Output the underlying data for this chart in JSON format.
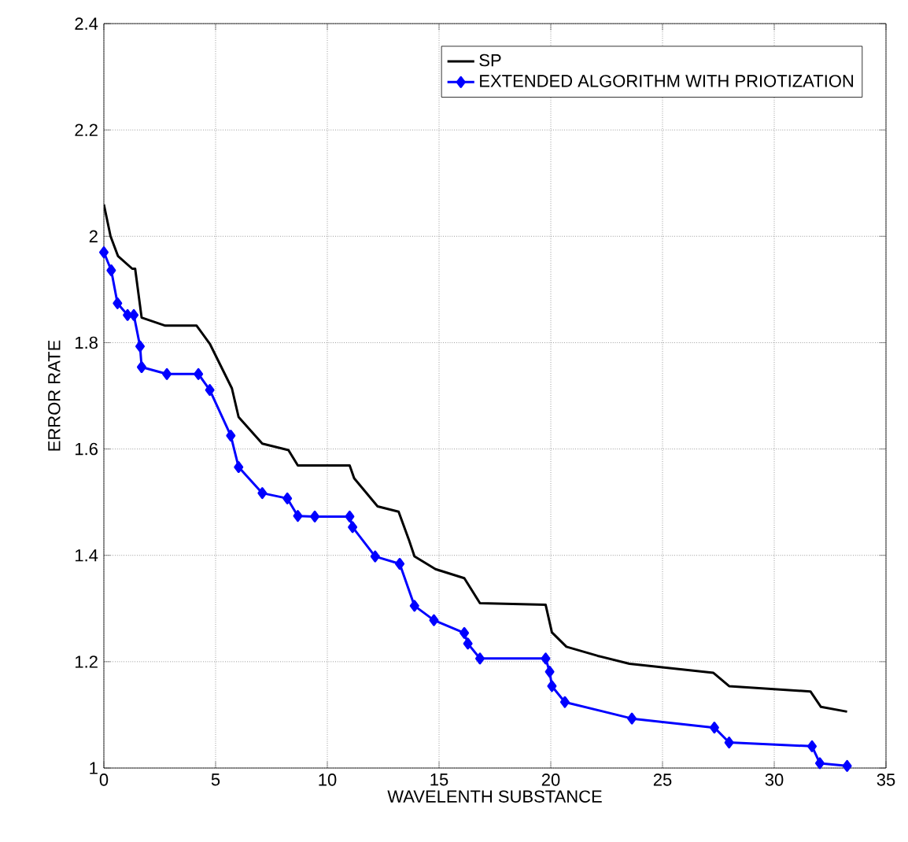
{
  "chart_data": {
    "type": "line",
    "xlabel": "WAVELENTH SUBSTANCE",
    "ylabel": "ERROR RATE",
    "xlim": [
      0,
      35
    ],
    "ylim": [
      1,
      2.4
    ],
    "xticks": [
      0,
      5,
      10,
      15,
      20,
      25,
      30,
      35
    ],
    "yticks": [
      1,
      1.2,
      1.4,
      1.6,
      1.8,
      2,
      2.2,
      2.4
    ],
    "grid": true,
    "legend": "top right",
    "marker": "diamond",
    "series": [
      {
        "name": "SP",
        "color": "#000000",
        "marker": "none",
        "x": [
          0,
          0.3,
          0.63,
          1.27,
          1.4,
          1.69,
          2.75,
          4.15,
          4.74,
          5.73,
          6.03,
          7.09,
          8.26,
          8.68,
          11.0,
          11.2,
          12.25,
          13.19,
          13.66,
          13.9,
          14.84,
          16.13,
          16.83,
          19.77,
          20.05,
          20.7,
          22.1,
          23.52,
          27.28,
          27.98,
          31.62,
          32.09,
          33.26
        ],
        "values": [
          2.06,
          2.0,
          1.963,
          1.939,
          1.939,
          1.847,
          1.832,
          1.832,
          1.798,
          1.714,
          1.66,
          1.61,
          1.598,
          1.569,
          1.569,
          1.545,
          1.492,
          1.482,
          1.428,
          1.398,
          1.374,
          1.357,
          1.31,
          1.307,
          1.255,
          1.228,
          1.211,
          1.196,
          1.179,
          1.154,
          1.144,
          1.115,
          1.106
        ]
      },
      {
        "name": "EXTENDED ALGORITHM WITH PRIOTIZATION",
        "color": "#0000ff",
        "x": [
          0,
          0.33,
          0.61,
          1.06,
          1.34,
          1.62,
          1.69,
          2.82,
          4.23,
          4.74,
          5.68,
          6.03,
          7.09,
          8.21,
          8.68,
          9.44,
          11.0,
          11.13,
          12.14,
          13.24,
          13.9,
          14.77,
          16.13,
          16.29,
          16.83,
          19.77,
          19.95,
          20.05,
          20.63,
          23.63,
          27.32,
          27.98,
          31.69,
          32.04,
          33.26
        ],
        "values": [
          1.97,
          1.936,
          1.874,
          1.852,
          1.852,
          1.793,
          1.754,
          1.741,
          1.741,
          1.711,
          1.625,
          1.566,
          1.517,
          1.507,
          1.474,
          1.473,
          1.473,
          1.453,
          1.398,
          1.384,
          1.305,
          1.278,
          1.254,
          1.234,
          1.206,
          1.206,
          1.181,
          1.154,
          1.124,
          1.093,
          1.076,
          1.048,
          1.041,
          1.009,
          1.004
        ]
      }
    ]
  }
}
